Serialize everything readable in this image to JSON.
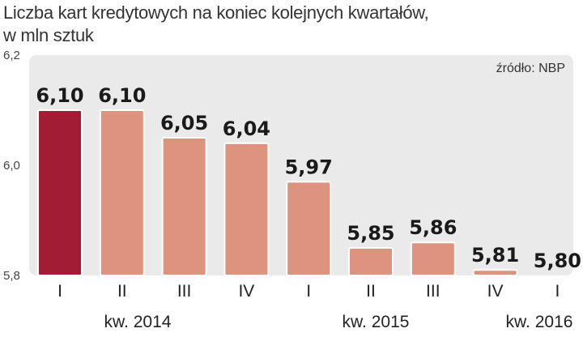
{
  "chart_data": {
    "type": "bar",
    "title": "Liczba kart kredytowych na koniec kolejnych kwartałów,",
    "subtitle": "w mln sztuk",
    "source": "źródło: NBP",
    "categories": [
      "I",
      "II",
      "III",
      "IV",
      "I",
      "II",
      "III",
      "IV",
      "I"
    ],
    "values": [
      6.1,
      6.1,
      6.05,
      6.04,
      5.97,
      5.85,
      5.86,
      5.81,
      5.8
    ],
    "value_labels": [
      "6,10",
      "6,10",
      "6,05",
      "6,04",
      "5,97",
      "5,85",
      "5,86",
      "5,81",
      "5,80"
    ],
    "groups": [
      {
        "label": "kw. 2014"
      },
      {
        "label": "kw. 2015"
      },
      {
        "label": "kw. 2016"
      }
    ],
    "ylim": [
      5.8,
      6.2
    ],
    "yticks": [
      "5,8",
      "6,0",
      "6,2"
    ],
    "highlight_index": 0,
    "colors": {
      "highlight": "#a31c36",
      "bar": "#de937f",
      "plot_bg": "#eaeaea"
    }
  }
}
